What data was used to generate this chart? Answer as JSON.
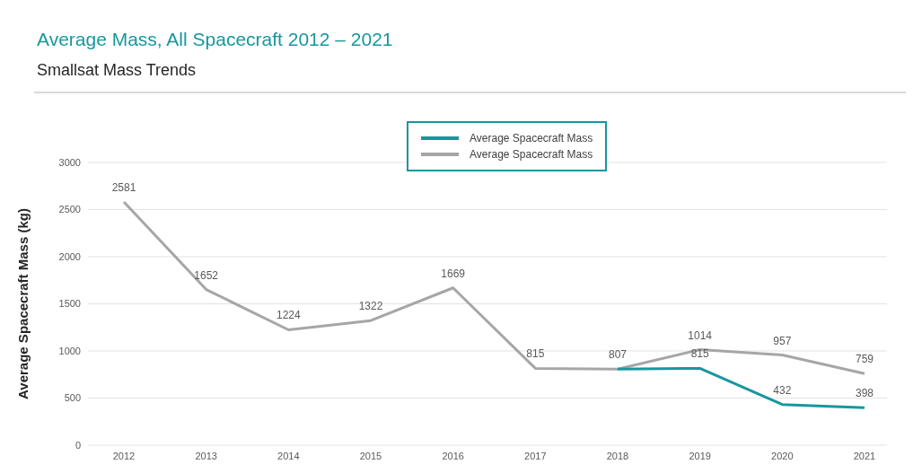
{
  "chart_data": {
    "type": "line",
    "title": "Average Mass, All Spacecraft 2012 – 2021",
    "subtitle": "Smallsat Mass Trends",
    "ylabel": "Average Spacecraft Mass (kg)",
    "categories": [
      "2012",
      "2013",
      "2014",
      "2015",
      "2016",
      "2017",
      "2018",
      "2019",
      "2020",
      "2021"
    ],
    "series": [
      {
        "name": "Average Spacecraft Mass",
        "color": "#17979e",
        "values": [
          null,
          null,
          null,
          null,
          null,
          null,
          807,
          815,
          432,
          398
        ],
        "value_labels": [
          null,
          null,
          null,
          null,
          null,
          null,
          null,
          "815",
          "432",
          "398"
        ]
      },
      {
        "name": "Average Spacecraft Mass",
        "color": "#a6a6a6",
        "values": [
          2581,
          1652,
          1224,
          1322,
          1669,
          815,
          807,
          1014,
          957,
          759
        ],
        "value_labels": [
          "2581",
          "1652",
          "1224",
          "1322",
          "1669",
          "815",
          "807",
          "1014",
          "957",
          "759"
        ]
      }
    ],
    "ylim": [
      0,
      3000
    ],
    "yticks": [
      0,
      500,
      1000,
      1500,
      2000,
      2500,
      3000
    ],
    "grid": "y",
    "legend": "top",
    "marker": "none",
    "line_style": "solid"
  }
}
